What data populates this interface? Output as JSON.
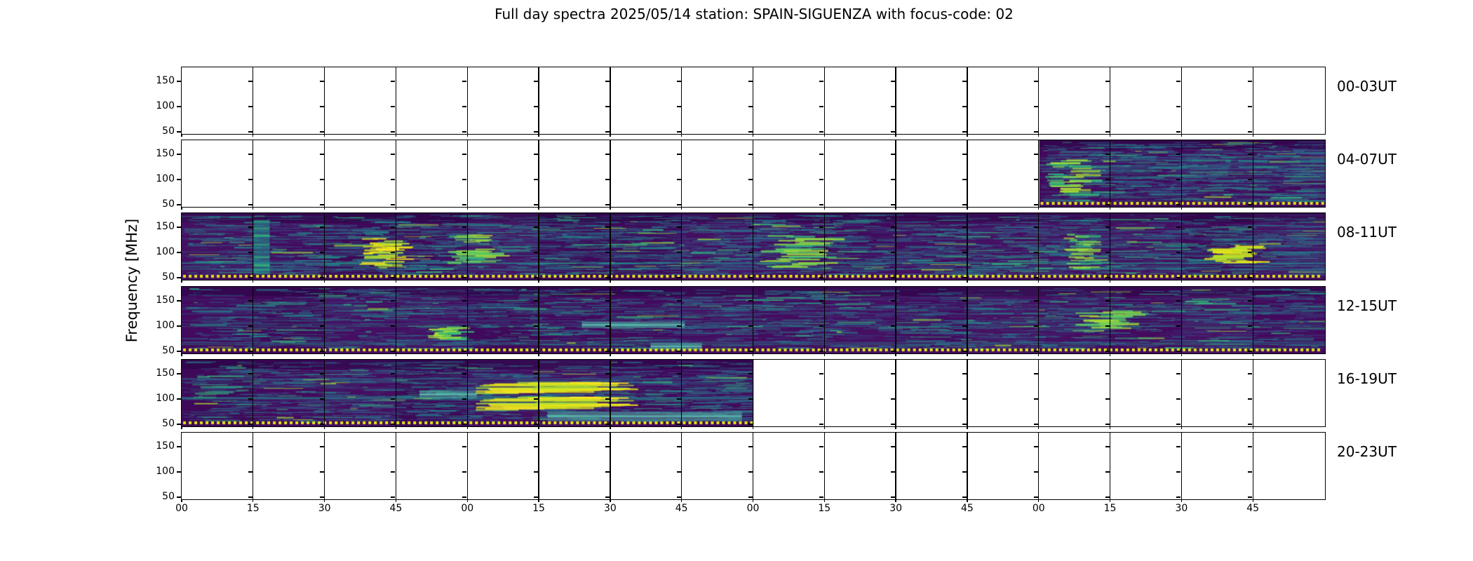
{
  "figure": {
    "title": "Full day spectra 2025/05/14 station: SPAIN-SIGUENZA with focus-code: 02",
    "ylabel": "Frequency [MHz]"
  },
  "chart_data": {
    "type": "heatmap",
    "title": "Full day spectra 2025/05/14 station: SPAIN-SIGUENZA with focus-code: 02",
    "ylabel": "Frequency [MHz]",
    "colormap": "viridis",
    "y_range_mhz": [
      45,
      180
    ],
    "y_tick_labels": [
      "150",
      "100",
      "50"
    ],
    "x_tick_labels": [
      "00",
      "15",
      "30",
      "45",
      "00",
      "15",
      "30",
      "45",
      "00",
      "15",
      "30",
      "45",
      "00",
      "15",
      "30",
      "45"
    ],
    "segments_per_row": 16,
    "segment_minutes": 15,
    "legend": "none",
    "grid": "segment boundaries only",
    "rows": [
      {
        "label": "00-03UT",
        "coverage": "empty",
        "fill_start": 0,
        "fill_end": 0,
        "seed": 11,
        "density": 0
      },
      {
        "label": "04-07UT",
        "coverage": "07:00-07:59 only",
        "fill_start": 0.75,
        "fill_end": 1,
        "seed": 27,
        "density": 1.35
      },
      {
        "label": "08-11UT",
        "coverage": "full",
        "fill_start": 0,
        "fill_end": 1,
        "seed": 33,
        "density": 1.05
      },
      {
        "label": "12-15UT",
        "coverage": "full",
        "fill_start": 0,
        "fill_end": 1,
        "seed": 47,
        "density": 0.78
      },
      {
        "label": "16-19UT",
        "coverage": "16:00-17:59 only",
        "fill_start": 0,
        "fill_end": 0.5,
        "seed": 58,
        "density": 0.95
      },
      {
        "label": "20-23UT",
        "coverage": "empty",
        "fill_start": 0,
        "fill_end": 0,
        "seed": 66,
        "density": 0
      }
    ],
    "features": [
      {
        "row": 1,
        "type": "green",
        "x0": 0.755,
        "x1": 0.795,
        "y0": 0.28,
        "y1": 0.85
      },
      {
        "row": 2,
        "type": "vstripe",
        "x0": 0.063,
        "x1": 0.077,
        "y0": 0.1,
        "y1": 0.92
      },
      {
        "row": 2,
        "type": "yellow",
        "x0": 0.152,
        "x1": 0.194,
        "y0": 0.36,
        "y1": 0.78
      },
      {
        "row": 2,
        "type": "green",
        "x0": 0.232,
        "x1": 0.274,
        "y0": 0.3,
        "y1": 0.8
      },
      {
        "row": 2,
        "type": "green",
        "x0": 0.5,
        "x1": 0.56,
        "y0": 0.3,
        "y1": 0.8
      },
      {
        "row": 2,
        "type": "green",
        "x0": 0.77,
        "x1": 0.798,
        "y0": 0.3,
        "y1": 0.85
      },
      {
        "row": 2,
        "type": "yellow",
        "x0": 0.893,
        "x1": 0.94,
        "y0": 0.48,
        "y1": 0.74
      },
      {
        "row": 3,
        "type": "green",
        "x0": 0.215,
        "x1": 0.245,
        "y0": 0.58,
        "y1": 0.78
      },
      {
        "row": 3,
        "type": "band",
        "x0": 0.35,
        "x1": 0.44,
        "y0": 0.52,
        "y1": 0.62
      },
      {
        "row": 3,
        "type": "band",
        "x0": 0.41,
        "x1": 0.455,
        "y0": 0.84,
        "y1": 0.95
      },
      {
        "row": 3,
        "type": "green",
        "x0": 0.78,
        "x1": 0.83,
        "y0": 0.35,
        "y1": 0.62
      },
      {
        "row": 4,
        "type": "band",
        "x0": 0.208,
        "x1": 0.258,
        "y0": 0.46,
        "y1": 0.58
      },
      {
        "row": 4,
        "type": "yellow",
        "x0": 0.255,
        "x1": 0.38,
        "y0": 0.33,
        "y1": 0.5
      },
      {
        "row": 4,
        "type": "yellow",
        "x0": 0.255,
        "x1": 0.38,
        "y0": 0.55,
        "y1": 0.75
      },
      {
        "row": 4,
        "type": "band",
        "x0": 0.32,
        "x1": 0.49,
        "y0": 0.78,
        "y1": 0.92
      }
    ],
    "bottom_marker_line": {
      "style": "dotted",
      "color": "#dde318",
      "position_mhz": 45
    }
  },
  "colors": {
    "background": "#ffffff",
    "frame": "#000000",
    "heatmap_base": "#440a5e",
    "heatmap_base_dark": "#38085c",
    "streak_blue": "#3b528b",
    "streak_teal": "#2a788e",
    "streak_teal2": "#21918c",
    "streak_green": "#35b779",
    "streak_bright_green": "#5ec962",
    "hot_green": "#a5db36",
    "hot_yellow": "#fde725",
    "dotted_line": "#dde318"
  }
}
